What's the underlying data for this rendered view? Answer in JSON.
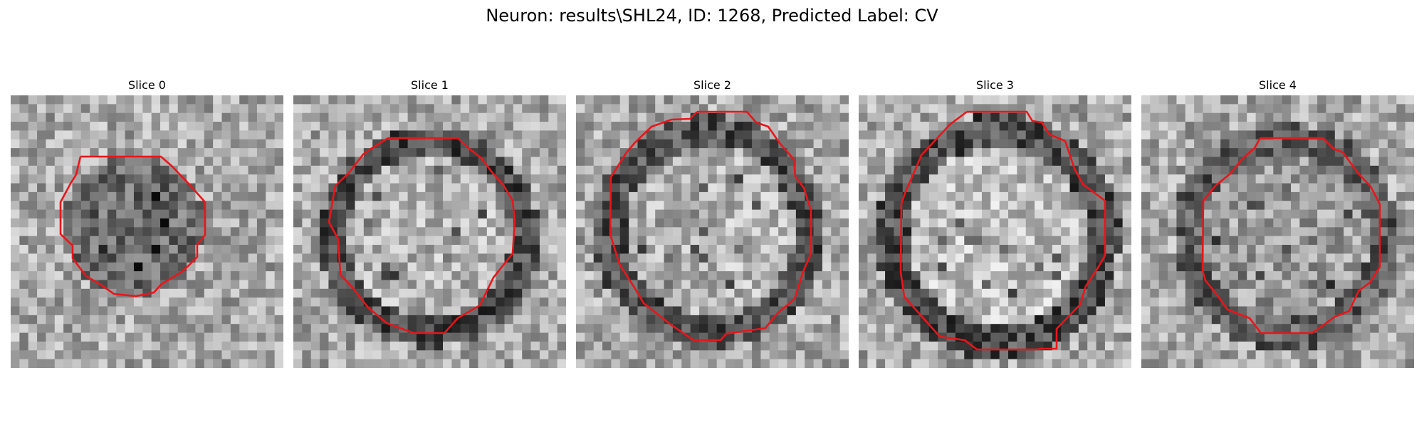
{
  "figure": {
    "title": "Neuron: results\\SHL24, ID: 1268, Predicted Label: CV"
  },
  "colors": {
    "contour": "#e8161b"
  },
  "slices": [
    {
      "title": "Slice 0"
    },
    {
      "title": "Slice 1"
    },
    {
      "title": "Slice 2"
    },
    {
      "title": "Slice 3"
    },
    {
      "title": "Slice 4"
    }
  ]
}
